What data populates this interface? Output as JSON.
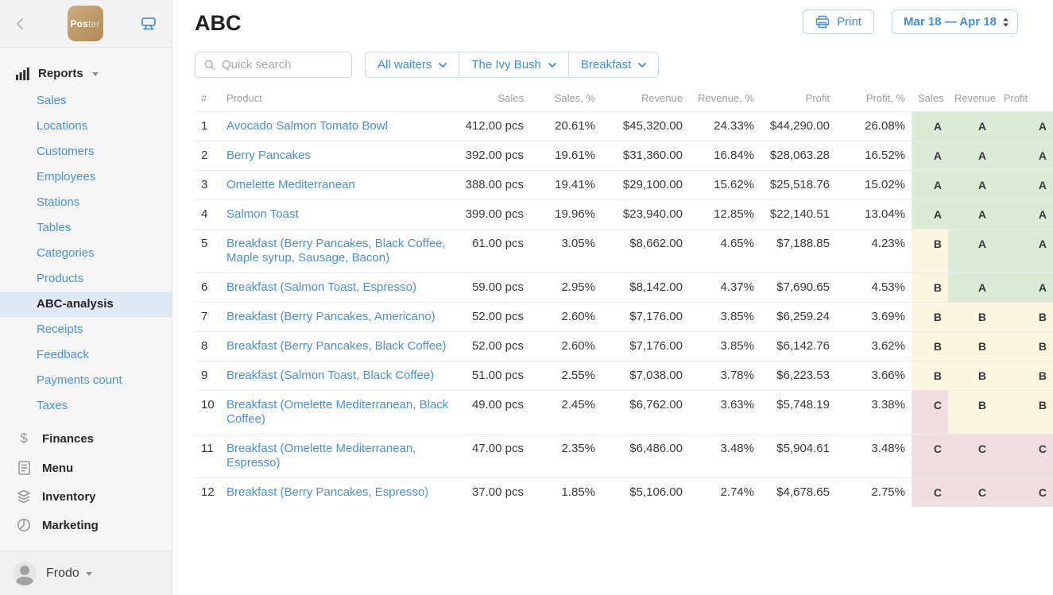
{
  "topbar": {
    "logo_main": "Pos",
    "logo_sub": "ter"
  },
  "sidebar": {
    "reports_label": "Reports",
    "items": [
      {
        "label": "Sales",
        "active": false
      },
      {
        "label": "Locations",
        "active": false
      },
      {
        "label": "Customers",
        "active": false
      },
      {
        "label": "Employees",
        "active": false
      },
      {
        "label": "Stations",
        "active": false
      },
      {
        "label": "Tables",
        "active": false
      },
      {
        "label": "Categories",
        "active": false
      },
      {
        "label": "Products",
        "active": false
      },
      {
        "label": "ABC-analysis",
        "active": true
      },
      {
        "label": "Receipts",
        "active": false
      },
      {
        "label": "Feedback",
        "active": false
      },
      {
        "label": "Payments count",
        "active": false
      },
      {
        "label": "Taxes",
        "active": false
      }
    ],
    "sections": [
      {
        "label": "Finances",
        "icon": "dollar-icon"
      },
      {
        "label": "Menu",
        "icon": "document-icon"
      },
      {
        "label": "Inventory",
        "icon": "layers-icon"
      },
      {
        "label": "Marketing",
        "icon": "clock-icon"
      }
    ],
    "user": {
      "name": "Frodo"
    }
  },
  "header": {
    "title": "ABC",
    "print_label": "Print",
    "date_range": "Mar 18 — Apr 18"
  },
  "filters": {
    "search_placeholder": "Quick search",
    "waiters": "All waiters",
    "location": "The Ivy Bush",
    "category": "Breakfast"
  },
  "table": {
    "headers": [
      "#",
      "Product",
      "Sales",
      "Sales, %",
      "Revenue",
      "Revenue, %",
      "Profit",
      "Profit, %",
      "Sales",
      "Revenue",
      "Profit"
    ],
    "rows": [
      {
        "num": "1",
        "product": "Avocado Salmon Tomato Bowl",
        "sales": "412.00 pcs",
        "sales_pct": "20.61%",
        "revenue": "$45,320.00",
        "revenue_pct": "24.33%",
        "profit": "$44,290.00",
        "profit_pct": "26.08%",
        "grades": [
          "A",
          "A",
          "A"
        ]
      },
      {
        "num": "2",
        "product": "Berry Pancakes",
        "sales": "392.00 pcs",
        "sales_pct": "19.61%",
        "revenue": "$31,360.00",
        "revenue_pct": "16.84%",
        "profit": "$28,063.28",
        "profit_pct": "16.52%",
        "grades": [
          "A",
          "A",
          "A"
        ]
      },
      {
        "num": "3",
        "product": "Omelette Mediterranean",
        "sales": "388.00 pcs",
        "sales_pct": "19.41%",
        "revenue": "$29,100.00",
        "revenue_pct": "15.62%",
        "profit": "$25,518.76",
        "profit_pct": "15.02%",
        "grades": [
          "A",
          "A",
          "A"
        ]
      },
      {
        "num": "4",
        "product": "Salmon Toast",
        "sales": "399.00 pcs",
        "sales_pct": "19.96%",
        "revenue": "$23,940.00",
        "revenue_pct": "12.85%",
        "profit": "$22,140.51",
        "profit_pct": "13.04%",
        "grades": [
          "A",
          "A",
          "A"
        ]
      },
      {
        "num": "5",
        "product": "Breakfast (Berry Pancakes, Black Coffee, Maple syrup, Sausage, Bacon)",
        "sales": "61.00 pcs",
        "sales_pct": "3.05%",
        "revenue": "$8,662.00",
        "revenue_pct": "4.65%",
        "profit": "$7,188.85",
        "profit_pct": "4.23%",
        "grades": [
          "B",
          "A",
          "A"
        ]
      },
      {
        "num": "6",
        "product": "Breakfast (Salmon Toast, Espresso)",
        "sales": "59.00 pcs",
        "sales_pct": "2.95%",
        "revenue": "$8,142.00",
        "revenue_pct": "4.37%",
        "profit": "$7,690.65",
        "profit_pct": "4.53%",
        "grades": [
          "B",
          "A",
          "A"
        ]
      },
      {
        "num": "7",
        "product": "Breakfast (Berry Pancakes, Americano)",
        "sales": "52.00 pcs",
        "sales_pct": "2.60%",
        "revenue": "$7,176.00",
        "revenue_pct": "3.85%",
        "profit": "$6,259.24",
        "profit_pct": "3.69%",
        "grades": [
          "B",
          "B",
          "B"
        ]
      },
      {
        "num": "8",
        "product": "Breakfast (Berry Pancakes, Black Coffee)",
        "sales": "52.00 pcs",
        "sales_pct": "2.60%",
        "revenue": "$7,176.00",
        "revenue_pct": "3.85%",
        "profit": "$6,142.76",
        "profit_pct": "3.62%",
        "grades": [
          "B",
          "B",
          "B"
        ]
      },
      {
        "num": "9",
        "product": "Breakfast (Salmon Toast, Black Coffee)",
        "sales": "51.00 pcs",
        "sales_pct": "2.55%",
        "revenue": "$7,038.00",
        "revenue_pct": "3.78%",
        "profit": "$6,223.53",
        "profit_pct": "3.66%",
        "grades": [
          "B",
          "B",
          "B"
        ]
      },
      {
        "num": "10",
        "product": "Breakfast (Omelette Mediterranean, Black Coffee)",
        "sales": "49.00 pcs",
        "sales_pct": "2.45%",
        "revenue": "$6,762.00",
        "revenue_pct": "3.63%",
        "profit": "$5,748.19",
        "profit_pct": "3.38%",
        "grades": [
          "C",
          "B",
          "B"
        ]
      },
      {
        "num": "11",
        "product": "Breakfast (Omelette Mediterranean, Espresso)",
        "sales": "47.00 pcs",
        "sales_pct": "2.35%",
        "revenue": "$6,486.00",
        "revenue_pct": "3.48%",
        "profit": "$5,904.61",
        "profit_pct": "3.48%",
        "grades": [
          "C",
          "C",
          "C"
        ]
      },
      {
        "num": "12",
        "product": "Breakfast (Berry Pancakes, Espresso)",
        "sales": "37.00 pcs",
        "sales_pct": "1.85%",
        "revenue": "$5,106.00",
        "revenue_pct": "2.74%",
        "profit": "$4,678.65",
        "profit_pct": "2.75%",
        "grades": [
          "C",
          "C",
          "C"
        ]
      }
    ]
  },
  "colors": {
    "accent_blue": "#3e8ede",
    "link_blue": "#4a90d9",
    "grade_a_bg": "#dcebd8",
    "grade_b_bg": "#fbf6df",
    "grade_c_bg": "#f0dee1",
    "active_item_bg": "#e0eaf7"
  }
}
